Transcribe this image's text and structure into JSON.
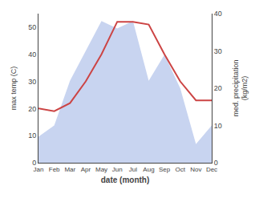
{
  "chart_data": {
    "type": "line",
    "xlabel": "date (month)",
    "ylabel": "max temp (C)",
    "y2label": "med. precipitation\n(kg/m2)",
    "categories": [
      "Jan",
      "Feb",
      "Mar",
      "Apr",
      "May",
      "Jun",
      "Jul",
      "Aug",
      "Sep",
      "Oct",
      "Nov",
      "Dec"
    ],
    "series": [
      {
        "type": "area",
        "axis": "y2",
        "color": "#c8d4f0",
        "values": [
          7,
          10,
          22,
          30,
          38,
          36,
          38,
          22,
          29,
          20,
          5,
          10
        ]
      },
      {
        "type": "line",
        "color": "#cc4444",
        "values": [
          20,
          19,
          22,
          30,
          40,
          52,
          52,
          51,
          40,
          30,
          23,
          23
        ]
      }
    ],
    "ylim": [
      0,
      55
    ],
    "yticks": [
      0,
      10,
      20,
      30,
      40,
      50
    ],
    "y2lim": [
      0,
      40
    ],
    "y2ticks": [
      0,
      10,
      20,
      30,
      40
    ],
    "grid": false
  }
}
